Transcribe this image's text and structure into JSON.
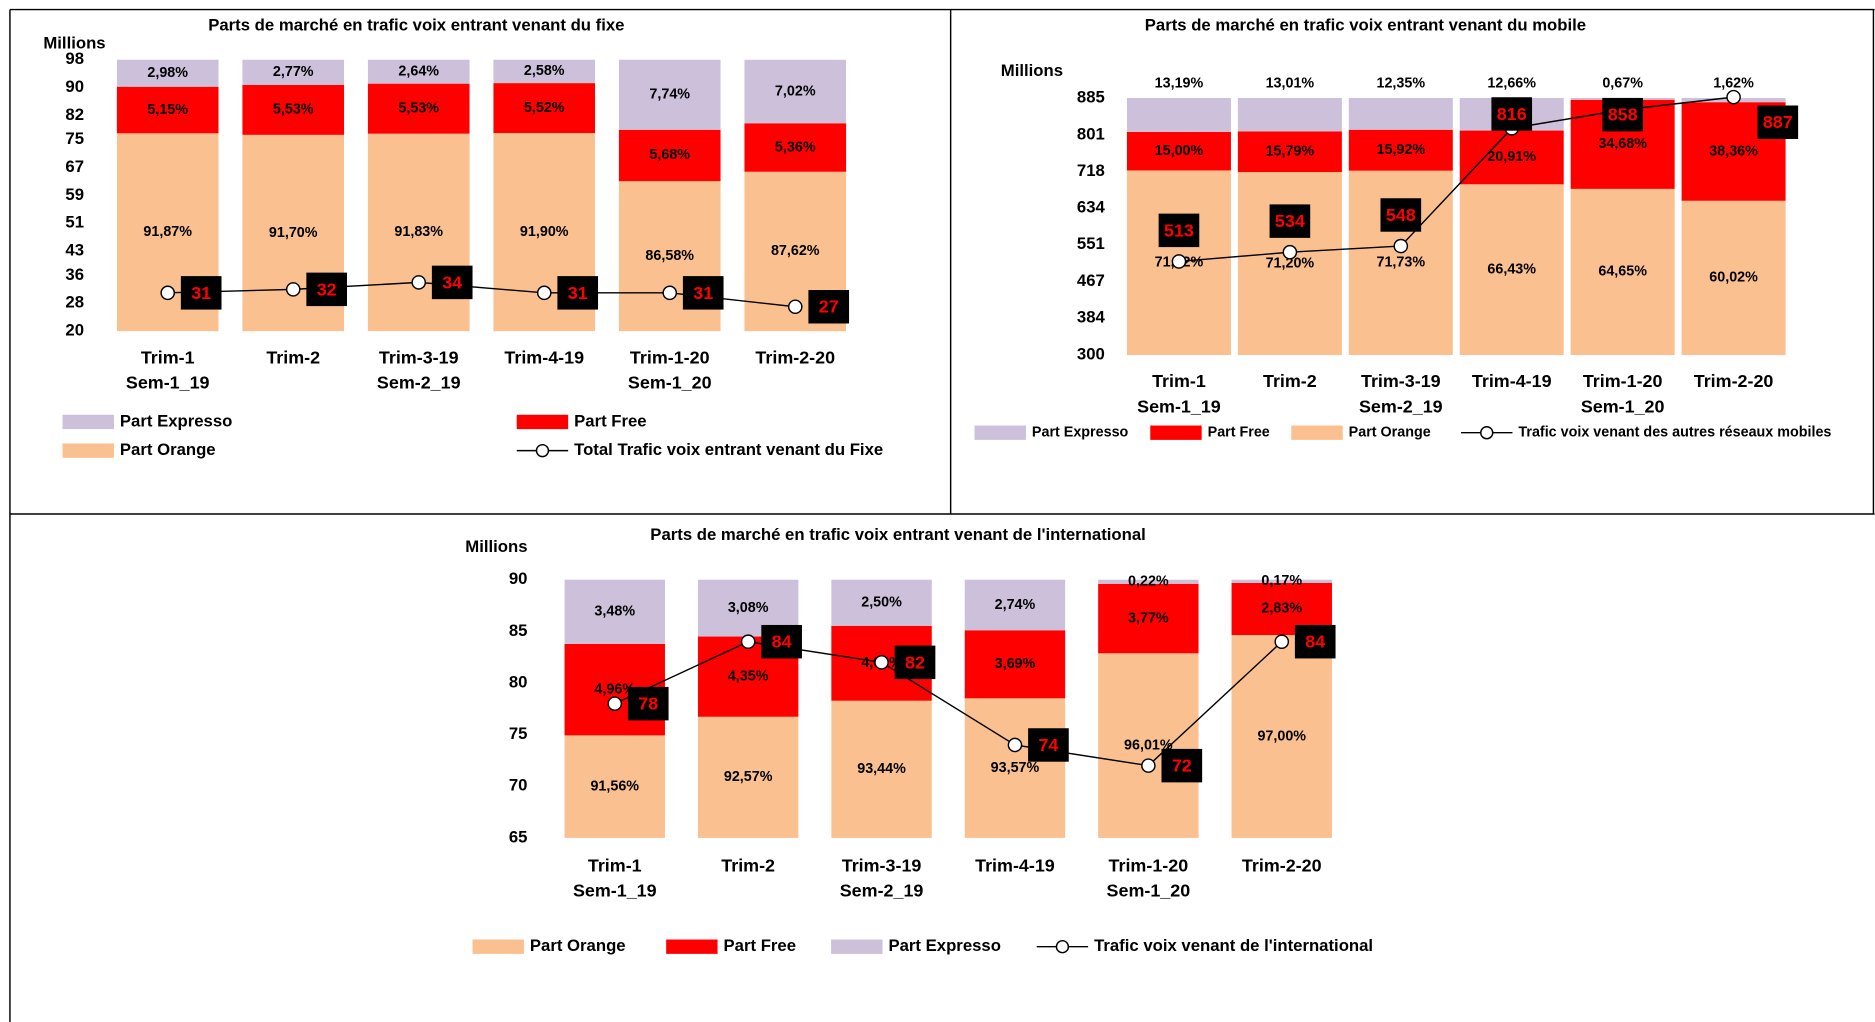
{
  "chart_data": [
    {
      "type": "combo",
      "title": "Parts de marché en  trafic voix  entrant venant du fixe",
      "y_label": "Millions",
      "categories": [
        [
          "Trim-1",
          "Sem-1_19"
        ],
        [
          "Trim-2"
        ],
        [
          "Trim-3-19",
          "Sem-2_19"
        ],
        [
          "Trim-4-19"
        ],
        [
          "Trim-1-20",
          "Sem-1_20"
        ],
        [
          "Trim-2-20"
        ]
      ],
      "ylim": [
        20,
        98
      ],
      "yticks": [
        20,
        28,
        36,
        43,
        51,
        59,
        67,
        75,
        82,
        90,
        98
      ],
      "y2lim": [
        70,
        100
      ],
      "grid": false,
      "series": [
        {
          "name": "Part Orange",
          "type": "bar",
          "axis": "y2",
          "color": "#fac090",
          "values": [
            91.87,
            91.7,
            91.83,
            91.9,
            86.58,
            87.62
          ],
          "value_labels": [
            "91,87%",
            "91,70%",
            "91,83%",
            "91,90%",
            "86,58%",
            "87,62%"
          ]
        },
        {
          "name": "Part Free",
          "type": "bar",
          "axis": "y2",
          "color": "#ff0000",
          "values": [
            5.15,
            5.53,
            5.53,
            5.52,
            5.68,
            5.36
          ],
          "value_labels": [
            "5,15%",
            "5,53%",
            "5,53%",
            "5,52%",
            "5,68%",
            "5,36%"
          ]
        },
        {
          "name": "Part Expresso",
          "type": "bar",
          "axis": "y2",
          "color": "#ccc0da",
          "values": [
            2.98,
            2.77,
            2.64,
            2.58,
            7.74,
            7.02
          ],
          "value_labels": [
            "2,98%",
            "2,77%",
            "2,64%",
            "2,58%",
            "7,74%",
            "7,02%"
          ]
        },
        {
          "name": "Total Trafic voix entrant venant du Fixe",
          "type": "line",
          "color": "#000000",
          "values": [
            31,
            32,
            34,
            31,
            31,
            27
          ]
        }
      ]
    },
    {
      "type": "combo",
      "title": "Parts de marché en  trafic voix  entrant venant du mobile",
      "y_label": "Millions",
      "categories": [
        [
          "Trim-1",
          "Sem-1_19"
        ],
        [
          "Trim-2"
        ],
        [
          "Trim-3-19",
          "Sem-2_19"
        ],
        [
          "Trim-4-19"
        ],
        [
          "Trim-1-20",
          "Sem-1_20"
        ],
        [
          "Trim-2-20"
        ]
      ],
      "ylim": [
        300,
        885
      ],
      "yticks": [
        300,
        384,
        467,
        551,
        634,
        718,
        801,
        885
      ],
      "y2lim": [
        0,
        100
      ],
      "grid": false,
      "series": [
        {
          "name": "Part Orange",
          "type": "bar",
          "axis": "y2",
          "color": "#fac090",
          "values": [
            71.82,
            71.2,
            71.73,
            66.43,
            64.65,
            60.02
          ],
          "value_labels": [
            "71,82%",
            "71,20%",
            "71,73%",
            "66,43%",
            "64,65%",
            "60,02%"
          ]
        },
        {
          "name": "Part Free",
          "type": "bar",
          "axis": "y2",
          "color": "#ff0000",
          "values": [
            15.0,
            15.79,
            15.92,
            20.91,
            34.68,
            38.36
          ],
          "value_labels": [
            "15,00%",
            "15,79%",
            "15,92%",
            "20,91%",
            "34,68%",
            "38,36%"
          ]
        },
        {
          "name": "Part Expresso",
          "type": "bar",
          "axis": "y2",
          "color": "#ccc0da",
          "values": [
            13.19,
            13.01,
            12.35,
            12.66,
            0.67,
            1.62
          ],
          "value_labels": [
            "13,19%",
            "13,01%",
            "12,35%",
            "12,66%",
            "0,67%",
            "1,62%"
          ]
        },
        {
          "name": "Trafic voix venant des autres réseaux mobiles",
          "type": "line",
          "color": "#000000",
          "values": [
            513,
            534,
            548,
            816,
            858,
            887
          ]
        }
      ]
    },
    {
      "type": "combo",
      "title": "Parts de marché en trafic voix  entrant venant de l'international",
      "y_label": "Millions",
      "categories": [
        [
          "Trim-1",
          "Sem-1_19"
        ],
        [
          "Trim-2"
        ],
        [
          "Trim-3-19",
          "Sem-2_19"
        ],
        [
          "Trim-4-19"
        ],
        [
          "Trim-1-20",
          "Sem-1_20"
        ],
        [
          "Trim-2-20"
        ]
      ],
      "ylim": [
        65,
        90
      ],
      "yticks": [
        65,
        70,
        75,
        80,
        85,
        90
      ],
      "y2lim": [
        86,
        100
      ],
      "grid": false,
      "series": [
        {
          "name": "Part Orange",
          "type": "bar",
          "axis": "y2",
          "color": "#fac090",
          "values": [
            91.56,
            92.57,
            93.44,
            93.57,
            96.01,
            97.0
          ],
          "value_labels": [
            "91,56%",
            "92,57%",
            "93,44%",
            "93,57%",
            "96,01%",
            "97,00%"
          ]
        },
        {
          "name": "Part Free",
          "type": "bar",
          "axis": "y2",
          "color": "#ff0000",
          "values": [
            4.96,
            4.35,
            4.06,
            3.69,
            3.77,
            2.83
          ],
          "value_labels": [
            "4,96%",
            "4,35%",
            "4,06%",
            "3,69%",
            "3,77%",
            "2,83%"
          ]
        },
        {
          "name": "Part Expresso",
          "type": "bar",
          "axis": "y2",
          "color": "#ccc0da",
          "values": [
            3.48,
            3.08,
            2.5,
            2.74,
            0.22,
            0.17
          ],
          "value_labels": [
            "3,48%",
            "3,08%",
            "2,50%",
            "2,74%",
            "0,22%",
            "0,17%"
          ]
        },
        {
          "name": "Trafic voix  venant de  l'international",
          "type": "line",
          "color": "#000000",
          "values": [
            78,
            84,
            82,
            74,
            72,
            84
          ]
        }
      ]
    }
  ]
}
